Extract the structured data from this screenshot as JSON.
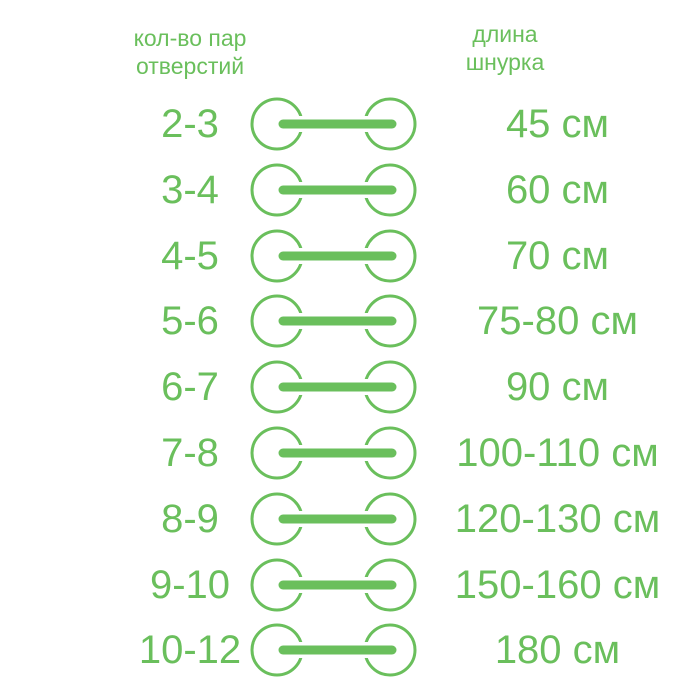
{
  "header": {
    "pairs_line1": "кол-во пар",
    "pairs_line2": "отверстий",
    "length_line1": "длина",
    "length_line2": "шнурка"
  },
  "accent_color": "#6abf5c",
  "rows": [
    {
      "pairs": "2-3",
      "length": "45 см"
    },
    {
      "pairs": "3-4",
      "length": "60 см"
    },
    {
      "pairs": "4-5",
      "length": "70 см"
    },
    {
      "pairs": "5-6",
      "length": "75-80 см"
    },
    {
      "pairs": "6-7",
      "length": "90 см"
    },
    {
      "pairs": "7-8",
      "length": "100-110 см"
    },
    {
      "pairs": "8-9",
      "length": "120-130 см"
    },
    {
      "pairs": "9-10",
      "length": "150-160 см"
    },
    {
      "pairs": "10-12",
      "length": "180 см"
    }
  ]
}
